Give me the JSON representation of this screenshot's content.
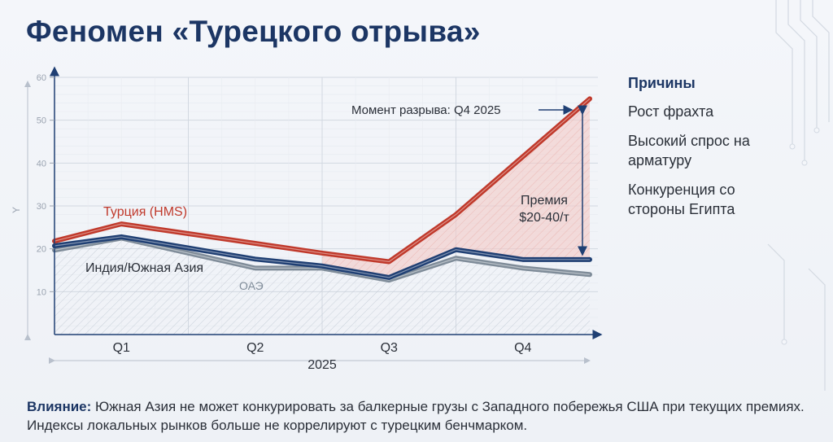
{
  "title": "Феномен «Турецкого отрыва»",
  "reasons": {
    "heading": "Причины",
    "items": [
      "Рост фрахта",
      "Высокий спрос на арматуру",
      "Конкуренция со стороны Египта"
    ]
  },
  "impact": {
    "label": "Влияние:",
    "text": " Южная Азия не может конкурировать за балкерные грузы с Западного побережья США при текущих премиях. Индексы локальных рынков больше не коррелируют с турецким бенчмарком."
  },
  "colors": {
    "turkey": "#c0392b",
    "india": "#1f3f73",
    "uae": "#7f8c99",
    "premium_fill": "#f3c9c6"
  },
  "chart_data": {
    "type": "line",
    "title": "",
    "xlabel": "2025",
    "ylabel": "Y",
    "ylim": [
      0,
      60
    ],
    "yticks": [
      10,
      20,
      30,
      40,
      50,
      60
    ],
    "xlim": [
      0,
      4
    ],
    "categories": [
      "Q1",
      "Q2",
      "Q3",
      "Q4"
    ],
    "grid": true,
    "series": [
      {
        "name": "Турция (HMS)",
        "key": "turkey",
        "x": [
          0,
          0.5,
          2,
          2.5,
          3,
          4
        ],
        "values": [
          21.8,
          25.8,
          19,
          17,
          28,
          55
        ]
      },
      {
        "name": "Индия/Южная Азия",
        "key": "india",
        "x": [
          0,
          0.5,
          0.75,
          1.5,
          2,
          2.5,
          3,
          3.5,
          4
        ],
        "values": [
          20.7,
          22.8,
          21.5,
          17.6,
          16,
          13.3,
          19.8,
          17.5,
          17.5
        ]
      },
      {
        "name": "ОАЭ",
        "key": "uae",
        "x": [
          0,
          0.5,
          1.5,
          2,
          2.5,
          3,
          3.5,
          4
        ],
        "values": [
          19.7,
          22.5,
          15.5,
          15.5,
          12.7,
          17.8,
          15.5,
          14
        ]
      }
    ],
    "annotations": {
      "break_moment": "Момент разрыва: Q4 2025",
      "premium_line1": "Премия",
      "premium_line2": "$20-40/т"
    }
  }
}
